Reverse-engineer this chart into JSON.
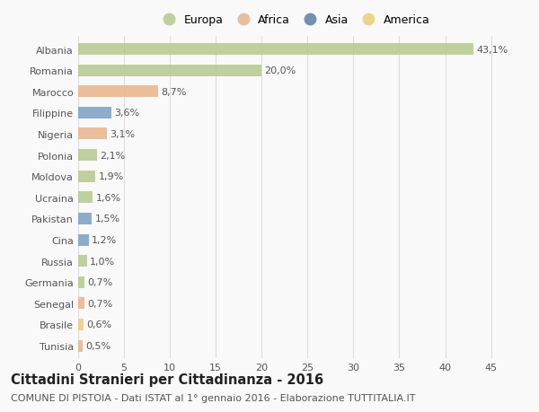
{
  "countries": [
    "Albania",
    "Romania",
    "Marocco",
    "Filippine",
    "Nigeria",
    "Polonia",
    "Moldova",
    "Ucraina",
    "Pakistan",
    "Cina",
    "Russia",
    "Germania",
    "Senegal",
    "Brasile",
    "Tunisia"
  ],
  "values": [
    43.1,
    20.0,
    8.7,
    3.6,
    3.1,
    2.1,
    1.9,
    1.6,
    1.5,
    1.2,
    1.0,
    0.7,
    0.7,
    0.6,
    0.5
  ],
  "labels": [
    "43,1%",
    "20,0%",
    "8,7%",
    "3,6%",
    "3,1%",
    "2,1%",
    "1,9%",
    "1,6%",
    "1,5%",
    "1,2%",
    "1,0%",
    "0,7%",
    "0,7%",
    "0,6%",
    "0,5%"
  ],
  "categories": [
    "Europa",
    "Africa",
    "Asia",
    "America"
  ],
  "bar_colors": [
    "#b5c98e",
    "#b5c98e",
    "#e8b48a",
    "#7a9fc2",
    "#e8b48a",
    "#b5c98e",
    "#b5c98e",
    "#b5c98e",
    "#7a9fc2",
    "#7a9fc2",
    "#b5c98e",
    "#b5c98e",
    "#e8b48a",
    "#f0cc7a",
    "#e8b48a"
  ],
  "legend_colors": [
    "#b5c98e",
    "#e8b48a",
    "#5b7fa6",
    "#f0cc7a"
  ],
  "title": "Cittadini Stranieri per Cittadinanza - 2016",
  "subtitle": "COMUNE DI PISTOIA - Dati ISTAT al 1° gennaio 2016 - Elaborazione TUTTITALIA.IT",
  "xlim": [
    0,
    47
  ],
  "xticks": [
    0,
    5,
    10,
    15,
    20,
    25,
    30,
    35,
    40,
    45
  ],
  "bg_color": "#f9f9f9",
  "grid_color": "#dddddd",
  "bar_alpha": 0.85,
  "title_fontsize": 10.5,
  "subtitle_fontsize": 8,
  "tick_fontsize": 8,
  "label_fontsize": 8,
  "legend_fontsize": 9
}
